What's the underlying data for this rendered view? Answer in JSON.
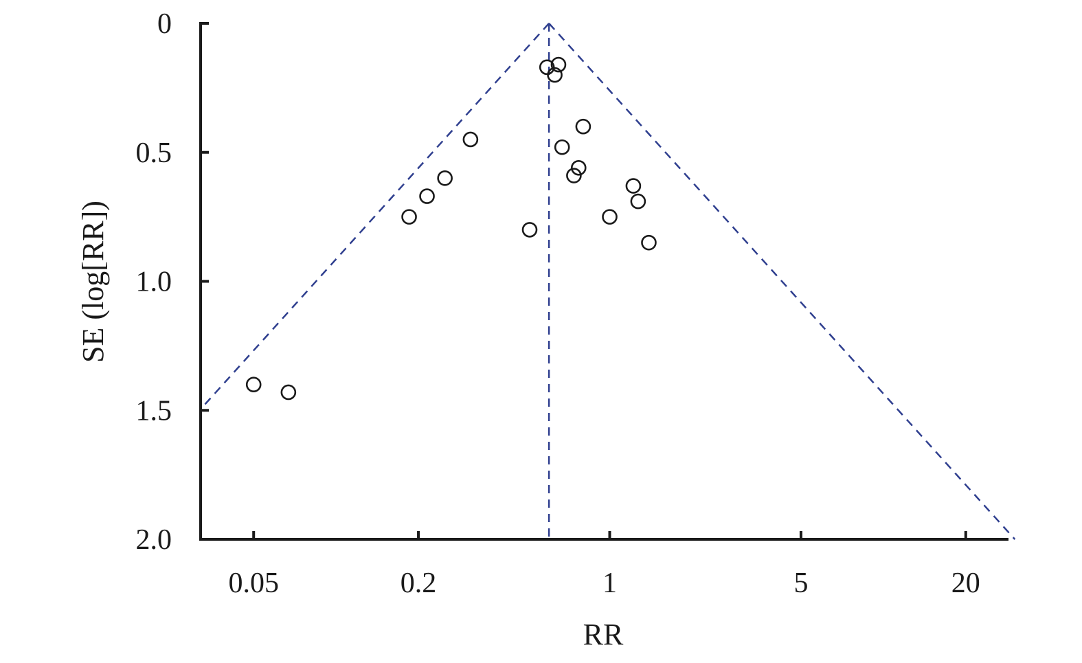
{
  "chart_data": {
    "type": "scatter",
    "title": "",
    "xlabel": "RR",
    "ylabel": "SE (log[RR])",
    "x_scale": "log",
    "xlim": [
      0.032,
      28
    ],
    "ylim": [
      0,
      2.0
    ],
    "y_inverted": true,
    "x_ticks": [
      0.05,
      0.2,
      1,
      5,
      20
    ],
    "x_tick_labels": [
      "0.05",
      "0.2",
      "1",
      "5",
      "20"
    ],
    "y_ticks": [
      0,
      0.5,
      1.0,
      1.5,
      2.0
    ],
    "y_tick_labels": [
      "0",
      "0.5",
      "1.0",
      "1.5",
      "2.0"
    ],
    "grid": false,
    "legend": "none",
    "pooled_estimate": 0.6,
    "funnel_line_color": "#2f3f8f",
    "points": [
      {
        "x": 0.05,
        "y": 1.4
      },
      {
        "x": 0.067,
        "y": 1.43
      },
      {
        "x": 0.185,
        "y": 0.75
      },
      {
        "x": 0.215,
        "y": 0.67
      },
      {
        "x": 0.25,
        "y": 0.6
      },
      {
        "x": 0.31,
        "y": 0.45
      },
      {
        "x": 0.51,
        "y": 0.8
      },
      {
        "x": 0.59,
        "y": 0.17
      },
      {
        "x": 0.63,
        "y": 0.2
      },
      {
        "x": 0.65,
        "y": 0.16
      },
      {
        "x": 0.67,
        "y": 0.48
      },
      {
        "x": 0.8,
        "y": 0.4
      },
      {
        "x": 0.74,
        "y": 0.59
      },
      {
        "x": 0.77,
        "y": 0.56
      },
      {
        "x": 1.0,
        "y": 0.75
      },
      {
        "x": 1.22,
        "y": 0.63
      },
      {
        "x": 1.27,
        "y": 0.69
      },
      {
        "x": 1.39,
        "y": 0.85
      }
    ]
  }
}
